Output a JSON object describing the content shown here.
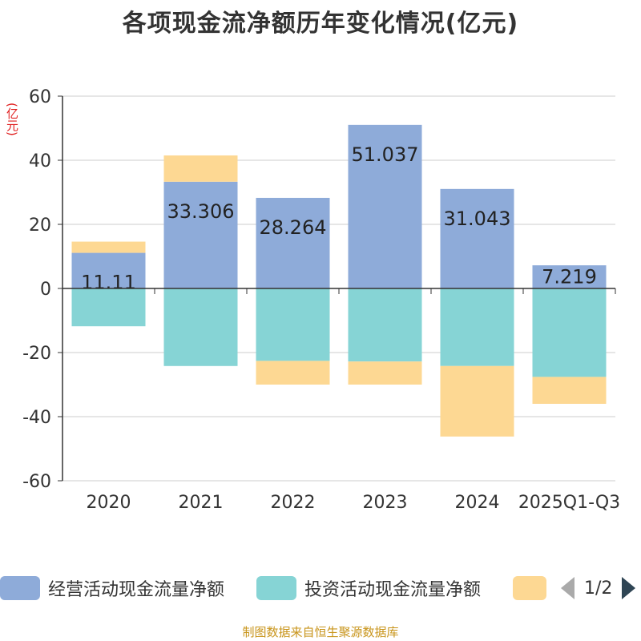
{
  "chart_data": {
    "type": "bar",
    "stacked": true,
    "title": "各项现金流净额历年变化情况(亿元)",
    "ylabel": "(亿元)",
    "xlabel": "",
    "ylim": [
      -60,
      60
    ],
    "yticks": [
      60,
      40,
      20,
      0,
      -20,
      -40,
      -60
    ],
    "grid": true,
    "categories": [
      "2020",
      "2021",
      "2022",
      "2023",
      "2024",
      "2025Q1-Q3"
    ],
    "series": [
      {
        "name": "经营活动现金流量净额",
        "color": "#8eabd9",
        "values": [
          11.11,
          33.306,
          28.264,
          51.037,
          31.043,
          7.219
        ],
        "labels": [
          "11.11",
          "33.306",
          "28.264",
          "51.037",
          "31.043",
          "7.219"
        ]
      },
      {
        "name": "投资活动现金流量净额",
        "color": "#86d4d5",
        "values": [
          -11.8,
          -24.2,
          -22.6,
          -22.8,
          -24.2,
          -27.6
        ]
      },
      {
        "name": "",
        "color": "#fdd893",
        "values": [
          3.5,
          8.2,
          -7.4,
          -7.2,
          -22.0,
          -8.4
        ]
      }
    ],
    "legend": {
      "position": "bottom",
      "page": "1/2"
    }
  },
  "source": "制图数据来自恒生聚源数据库"
}
